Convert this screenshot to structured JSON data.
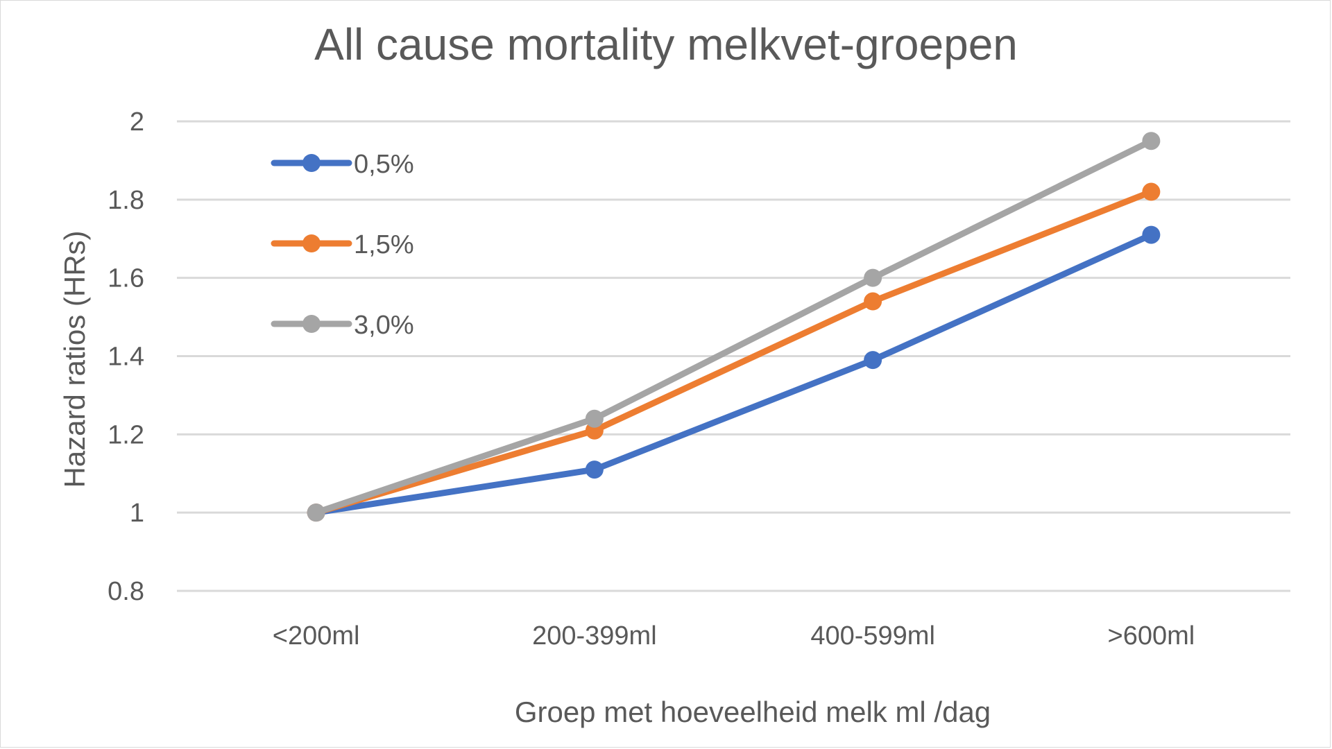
{
  "chart_data": {
    "type": "line",
    "title": "All cause mortality melkvet-groepen",
    "xlabel": "Groep met hoeveelheid melk ml /dag",
    "ylabel": "Hazard ratios (HRs)",
    "categories": [
      "<200ml",
      "200-399ml",
      "400-599ml",
      ">600ml"
    ],
    "ylim": [
      0.8,
      2.0
    ],
    "yticks": [
      "0.8",
      "1",
      "1.2",
      "1.4",
      "1.6",
      "1.8",
      "2"
    ],
    "grid": true,
    "legend_position": "top-left",
    "series": [
      {
        "name": "0,5%",
        "color": "#4472c4",
        "values": [
          1.0,
          1.11,
          1.39,
          1.71
        ]
      },
      {
        "name": "1,5%",
        "color": "#ed7d31",
        "values": [
          1.0,
          1.21,
          1.54,
          1.82
        ]
      },
      {
        "name": "3,0%",
        "color": "#a5a5a5",
        "values": [
          1.0,
          1.24,
          1.6,
          1.95
        ]
      }
    ]
  }
}
